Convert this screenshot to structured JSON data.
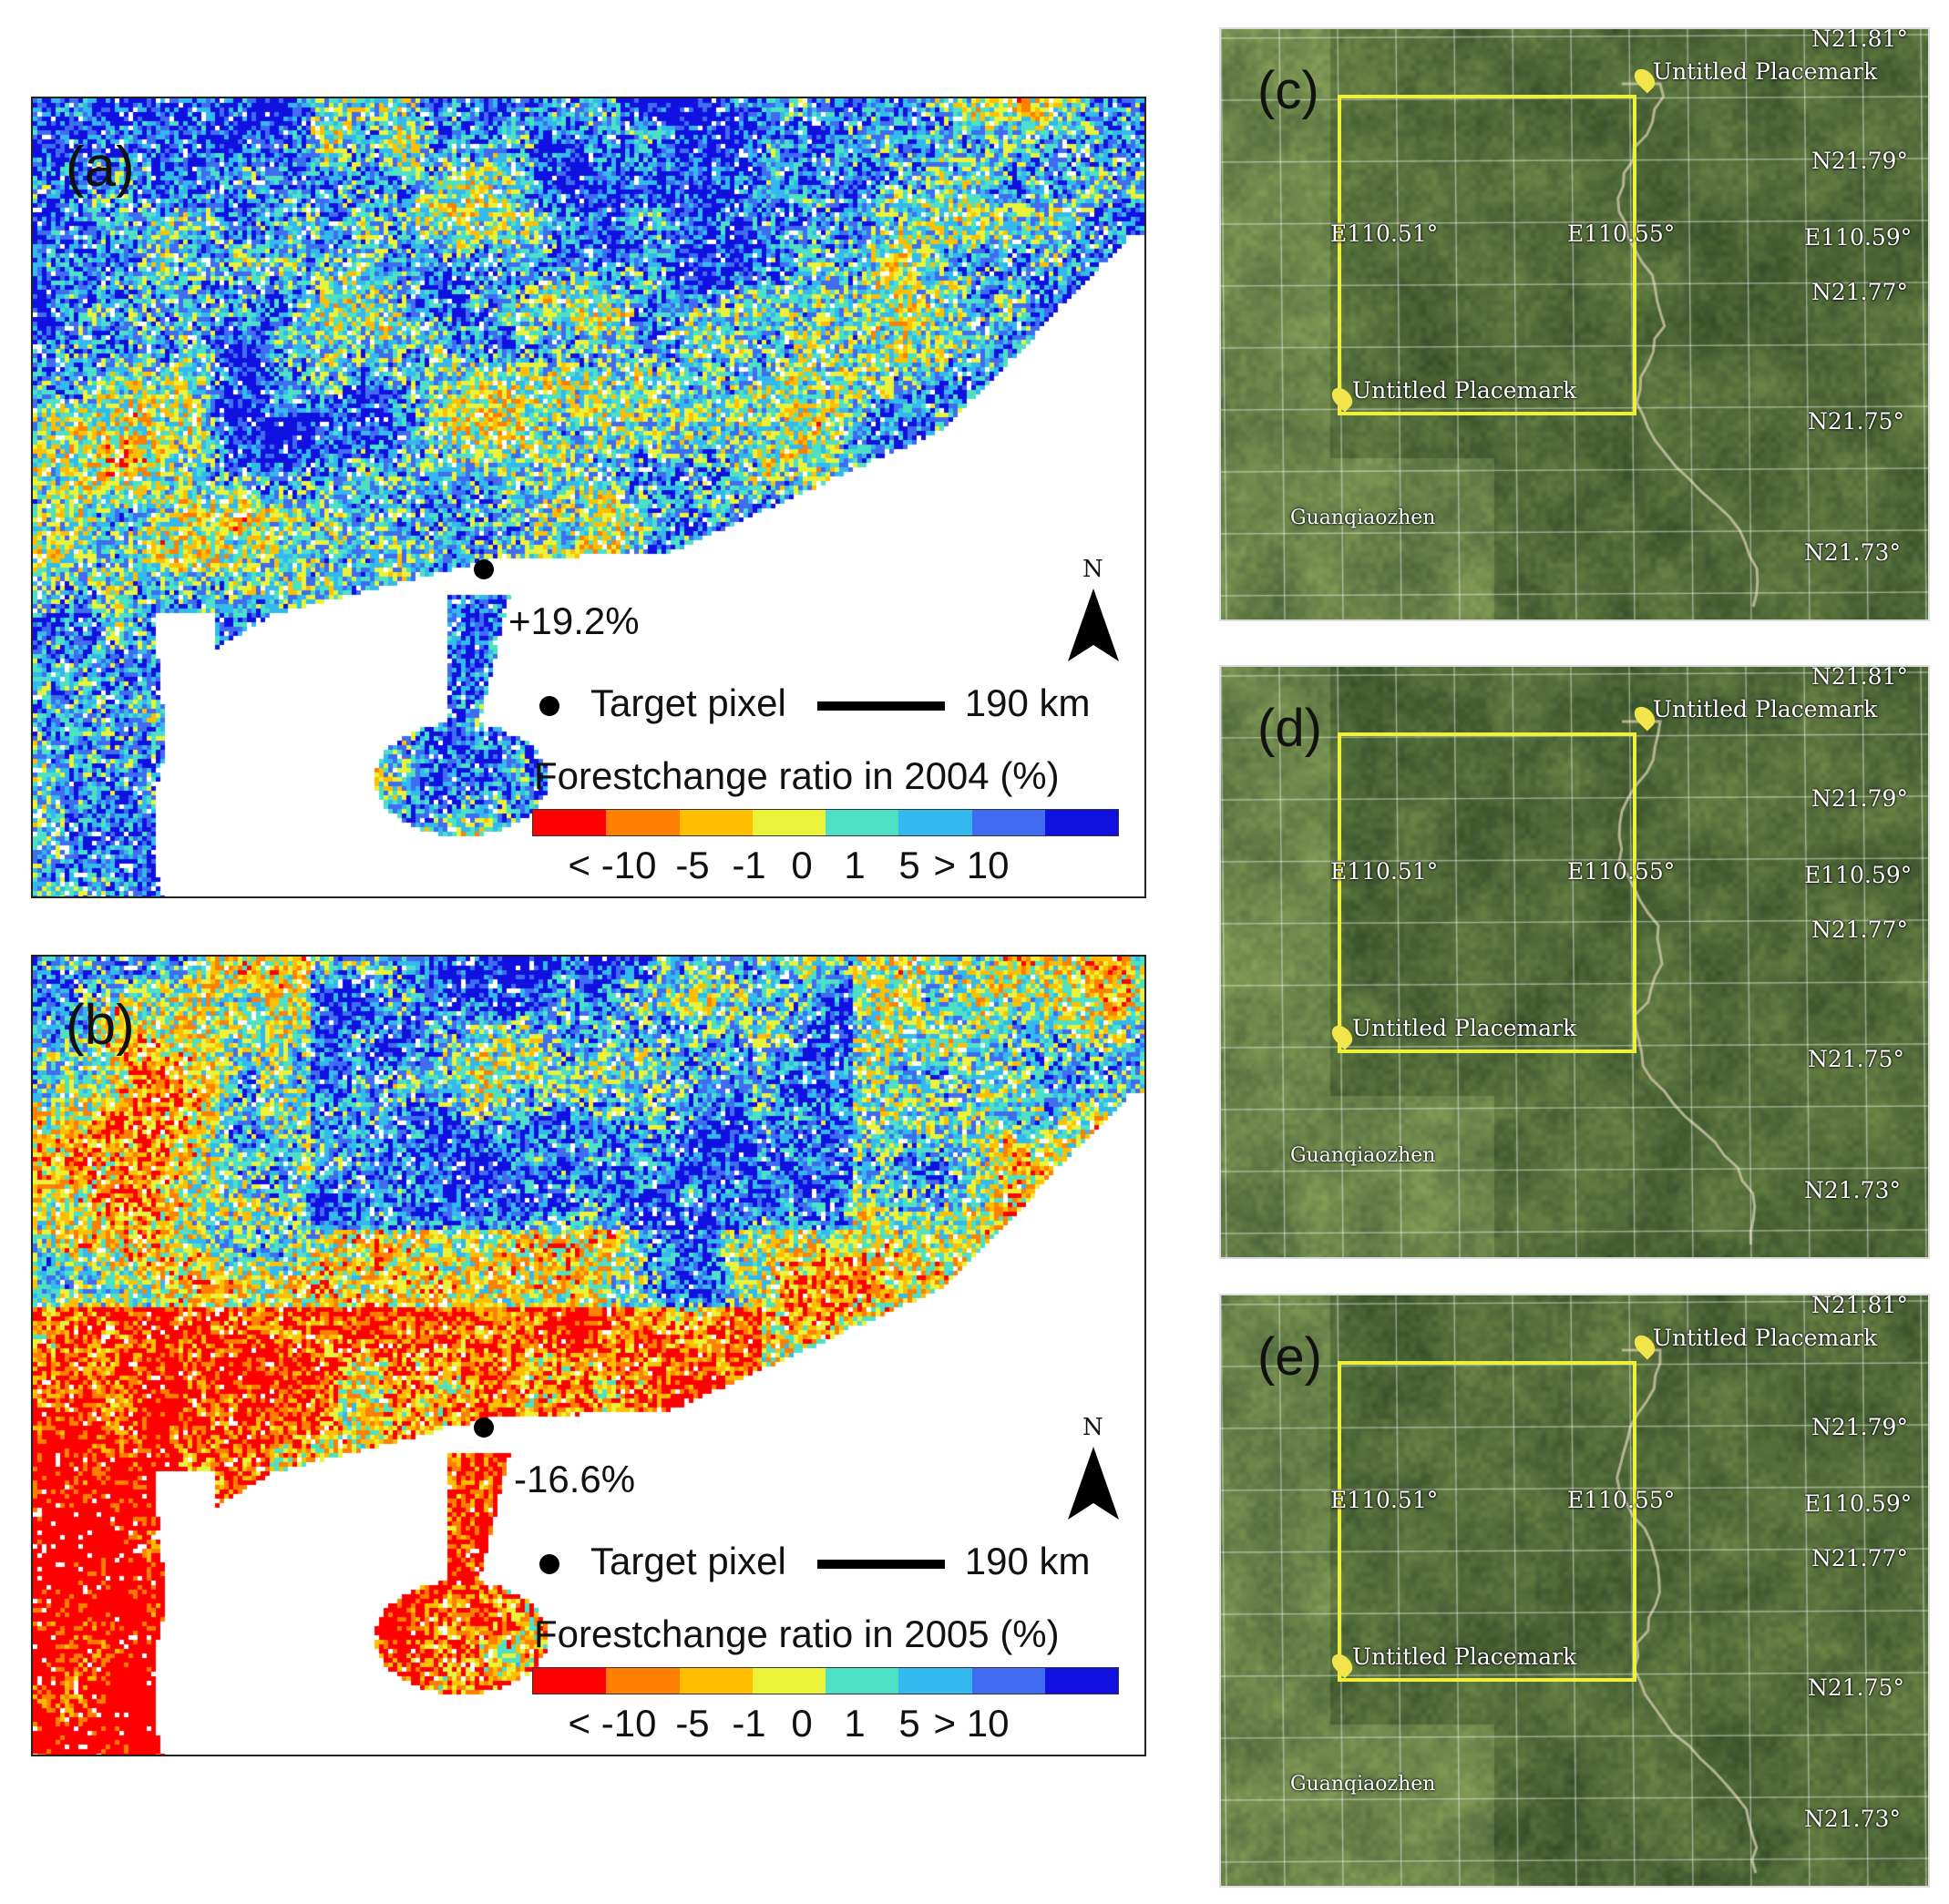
{
  "colors": {
    "ramp": [
      "#ff0000",
      "#ff7f00",
      "#ffbf00",
      "#eaf23a",
      "#4ee0c4",
      "#33b9ef",
      "#3f6cf0",
      "#1010e0"
    ]
  },
  "map_a": {
    "letter": "(a)",
    "change": "+19.2%",
    "target_label": "Target pixel",
    "scale_label": "190 km",
    "north_label": "N",
    "legend_title": "Forestchange ratio in 2004 (%)",
    "ticks": [
      "< -10",
      "-5",
      "-1",
      "0",
      "1",
      "5",
      "> 10"
    ],
    "dominant_class": "increase"
  },
  "map_b": {
    "letter": "(b)",
    "change": "-16.6%",
    "target_label": "Target pixel",
    "scale_label": "190 km",
    "north_label": "N",
    "legend_title": "Forestchange ratio in 2005 (%)",
    "ticks": [
      "< -10",
      "-5",
      "-1",
      "0",
      "1",
      "5",
      "> 10"
    ],
    "dominant_class": "decrease"
  },
  "sat_c": {
    "letter": "(c)",
    "labels": {
      "n81": "N21.81°",
      "n79": "N21.79°",
      "n77": "N21.77°",
      "n75": "N21.75°",
      "n73": "N21.73°",
      "e51": "E110.51°",
      "e55": "E110.55°",
      "e59": "E110.59°",
      "placemark_top": "Untitled Placemark",
      "placemark_bottom": "Untitled Placemark",
      "town": "Guanqiaozhen"
    }
  },
  "sat_d": {
    "letter": "(d)",
    "labels": {
      "n81": "N21.81°",
      "n79": "N21.79°",
      "n77": "N21.77°",
      "n75": "N21.75°",
      "n73": "N21.73°",
      "e51": "E110.51°",
      "e55": "E110.55°",
      "e59": "E110.59°",
      "placemark_top": "Untitled Placemark",
      "placemark_bottom": "Untitled Placemark",
      "town": "Guanqiaozhen"
    }
  },
  "sat_e": {
    "letter": "(e)",
    "labels": {
      "n81": "N21.81°",
      "n79": "N21.79°",
      "n77": "N21.77°",
      "n75": "N21.75°",
      "n73": "N21.73°",
      "e51": "E110.51°",
      "e55": "E110.55°",
      "e59": "E110.59°",
      "placemark_top": "Untitled Placemark",
      "placemark_bottom": "Untitled Placemark",
      "town": "Guanqiaozhen"
    }
  }
}
